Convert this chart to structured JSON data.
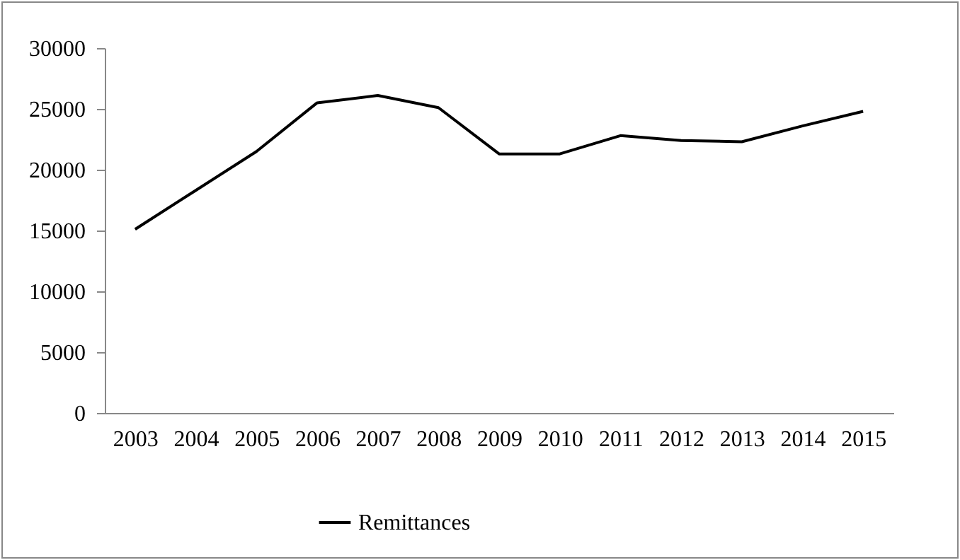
{
  "chart_data": {
    "type": "line",
    "categories": [
      "2003",
      "2004",
      "2005",
      "2006",
      "2007",
      "2008",
      "2009",
      "2010",
      "2011",
      "2012",
      "2013",
      "2014",
      "2015"
    ],
    "series": [
      {
        "name": "Remittances",
        "color": "#000000",
        "values": [
          15100,
          18300,
          21500,
          25500,
          26100,
          25100,
          21300,
          21300,
          22800,
          22400,
          22300,
          23600,
          24800
        ]
      }
    ],
    "ylim": [
      0,
      30000
    ],
    "yticks": [
      0,
      5000,
      10000,
      15000,
      20000,
      25000,
      30000
    ],
    "grid": false,
    "legend": "bottom",
    "marker": "none"
  }
}
